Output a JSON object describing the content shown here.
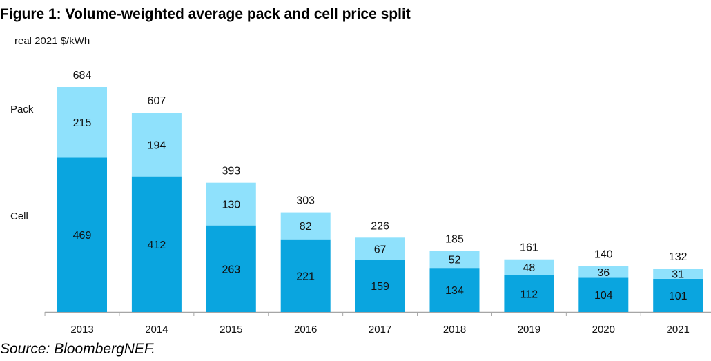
{
  "chart_data": {
    "type": "bar",
    "stacked": true,
    "title": "Figure 1: Volume-weighted average pack and cell price split",
    "ylabel": "real 2021 $/kWh",
    "xlabel": "",
    "source": "Source: BloombergNEF.",
    "categories": [
      "2013",
      "2014",
      "2015",
      "2016",
      "2017",
      "2018",
      "2019",
      "2020",
      "2021"
    ],
    "series": [
      {
        "name": "Cell",
        "values": [
          469,
          412,
          263,
          221,
          159,
          134,
          112,
          104,
          101
        ],
        "color": "#0aa5df"
      },
      {
        "name": "Pack",
        "values": [
          215,
          194,
          130,
          82,
          67,
          52,
          48,
          36,
          31
        ],
        "color": "#8fe1fc"
      }
    ],
    "totals": [
      684,
      607,
      393,
      303,
      226,
      185,
      161,
      140,
      132
    ],
    "ylim": [
      0,
      700
    ],
    "grid": false,
    "legend": "left, inline labels beside first bar"
  }
}
